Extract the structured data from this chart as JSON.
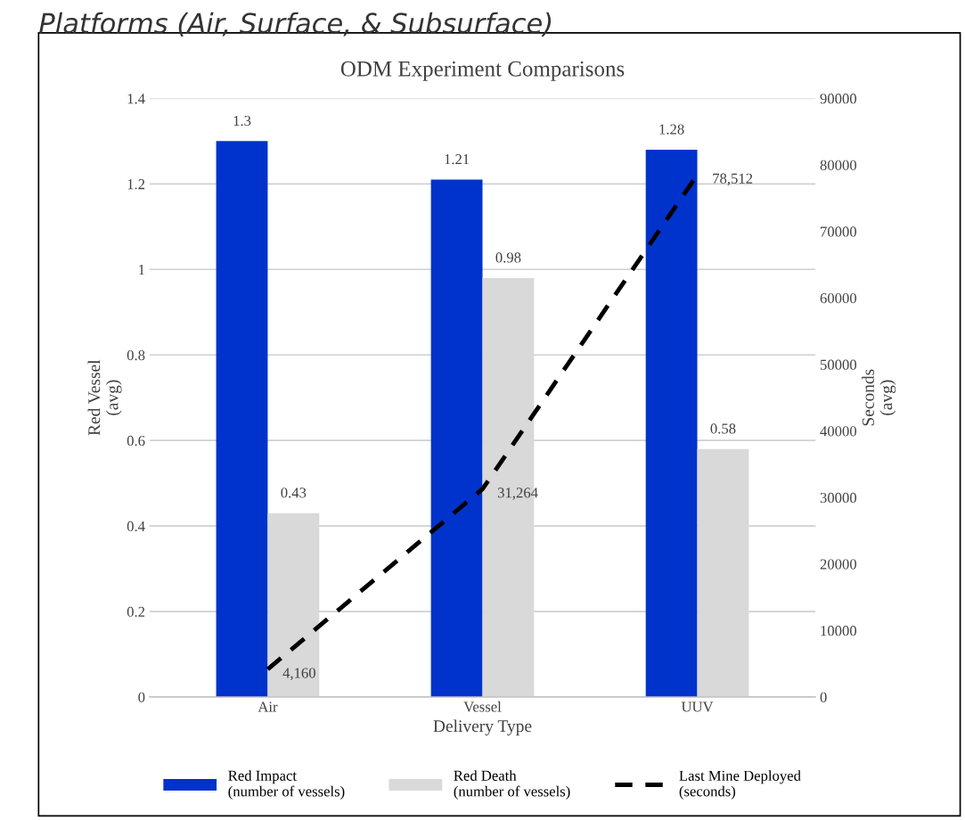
{
  "chart_data": {
    "type": "bar",
    "title": "ODM Experiment Comparisons",
    "annotations": [
      "Platforms (Air, Surface, & Subsurface)"
    ],
    "xlabel": "Delivery Type",
    "ylabel": "Red Vessel\n(avg)",
    "y2label": "Seconds\n(avg)",
    "categories": [
      "Air",
      "Vessel",
      "UUV"
    ],
    "series": [
      {
        "name": "Red Impact\n(number of vessels)",
        "color": "#0033cc",
        "values": [
          1.3,
          1.21,
          1.28
        ]
      },
      {
        "name": "Red Death\n(number of vessels)",
        "color": "#d9d9d9",
        "values": [
          0.43,
          0.98,
          0.58
        ]
      },
      {
        "name": "Last Mine Deployed\n(seconds)",
        "type": "line",
        "axis": "y2",
        "color": "#000000",
        "line_style": "dashed",
        "values": [
          4160,
          31264,
          78512
        ],
        "value_labels": [
          "4,160",
          "31,264",
          "78,512"
        ]
      }
    ],
    "ylim": [
      0,
      1.4
    ],
    "yticks": [
      0,
      0.2,
      0.4,
      0.6,
      0.8,
      1,
      1.2,
      1.4
    ],
    "y2lim": [
      0,
      90000
    ],
    "y2ticks": [
      0,
      10000,
      20000,
      30000,
      40000,
      50000,
      60000,
      70000,
      80000,
      90000
    ],
    "data_labels": true,
    "grid": "y",
    "legend": "bottom",
    "marker": "none"
  }
}
